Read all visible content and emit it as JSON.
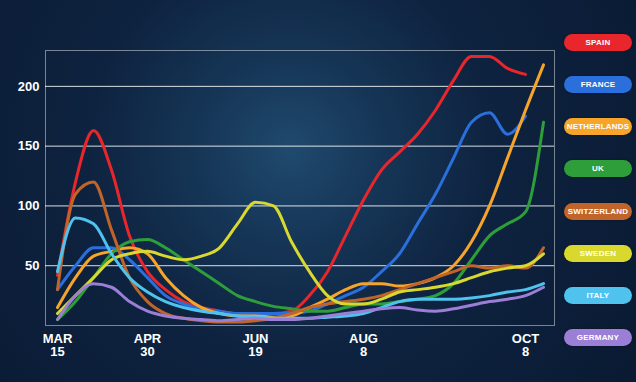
{
  "chart_data": {
    "type": "line",
    "categories": [
      "MAR 15",
      null,
      null,
      null,
      null,
      "APR 30",
      null,
      null,
      null,
      null,
      null,
      "JUN 19",
      null,
      null,
      null,
      null,
      null,
      "AUG 8",
      null,
      null,
      null,
      null,
      null,
      null,
      null,
      null,
      "OCT 8",
      null
    ],
    "ylim": [
      0,
      230
    ],
    "yticks": [
      50,
      100,
      150,
      200
    ],
    "grid": true,
    "legend": "right",
    "series": [
      {
        "name": "SPAIN",
        "color": "#e8262b",
        "values": [
          42,
          120,
          163,
          130,
          75,
          45,
          30,
          20,
          15,
          12,
          10,
          10,
          10,
          12,
          25,
          45,
          75,
          105,
          130,
          145,
          160,
          180,
          205,
          225,
          225,
          215,
          210,
          null
        ]
      },
      {
        "name": "FRANCE",
        "color": "#2a6fdb",
        "values": [
          30,
          50,
          65,
          65,
          55,
          40,
          25,
          18,
          14,
          12,
          10,
          10,
          10,
          10,
          12,
          18,
          25,
          32,
          45,
          60,
          85,
          110,
          140,
          170,
          178,
          160,
          175,
          null
        ]
      },
      {
        "name": "NETHERLANDS",
        "color": "#f7a52a",
        "values": [
          15,
          40,
          58,
          62,
          65,
          60,
          40,
          25,
          15,
          10,
          8,
          8,
          7,
          8,
          15,
          22,
          30,
          35,
          35,
          33,
          35,
          40,
          50,
          70,
          100,
          140,
          180,
          218
        ]
      },
      {
        "name": "UK",
        "color": "#2e9e3a",
        "values": [
          5,
          20,
          40,
          60,
          70,
          72,
          65,
          55,
          45,
          35,
          25,
          20,
          16,
          14,
          12,
          12,
          15,
          18,
          18,
          20,
          22,
          25,
          35,
          55,
          75,
          85,
          95,
          170
        ]
      },
      {
        "name": "SWITZERLAND",
        "color": "#c0642a",
        "values": [
          30,
          110,
          120,
          80,
          40,
          20,
          10,
          6,
          4,
          3,
          3,
          4,
          6,
          10,
          15,
          18,
          20,
          22,
          25,
          30,
          35,
          40,
          45,
          50,
          48,
          50,
          48,
          65
        ]
      },
      {
        "name": "SWEDEN",
        "color": "#d9d82e",
        "values": [
          10,
          25,
          40,
          55,
          60,
          62,
          58,
          55,
          58,
          65,
          85,
          103,
          100,
          70,
          45,
          25,
          18,
          18,
          22,
          28,
          30,
          32,
          35,
          40,
          45,
          48,
          50,
          60
        ]
      },
      {
        "name": "ITALY",
        "color": "#4fc3ee",
        "values": [
          45,
          90,
          85,
          60,
          40,
          28,
          20,
          15,
          12,
          10,
          8,
          7,
          6,
          6,
          6,
          7,
          8,
          10,
          15,
          20,
          22,
          22,
          22,
          23,
          25,
          28,
          30,
          35
        ]
      },
      {
        "name": "GERMANY",
        "color": "#9b7fd6",
        "values": [
          5,
          25,
          35,
          32,
          20,
          12,
          8,
          6,
          5,
          4,
          5,
          6,
          5,
          5,
          6,
          8,
          10,
          12,
          14,
          15,
          13,
          12,
          14,
          17,
          20,
          22,
          25,
          32
        ]
      }
    ]
  }
}
